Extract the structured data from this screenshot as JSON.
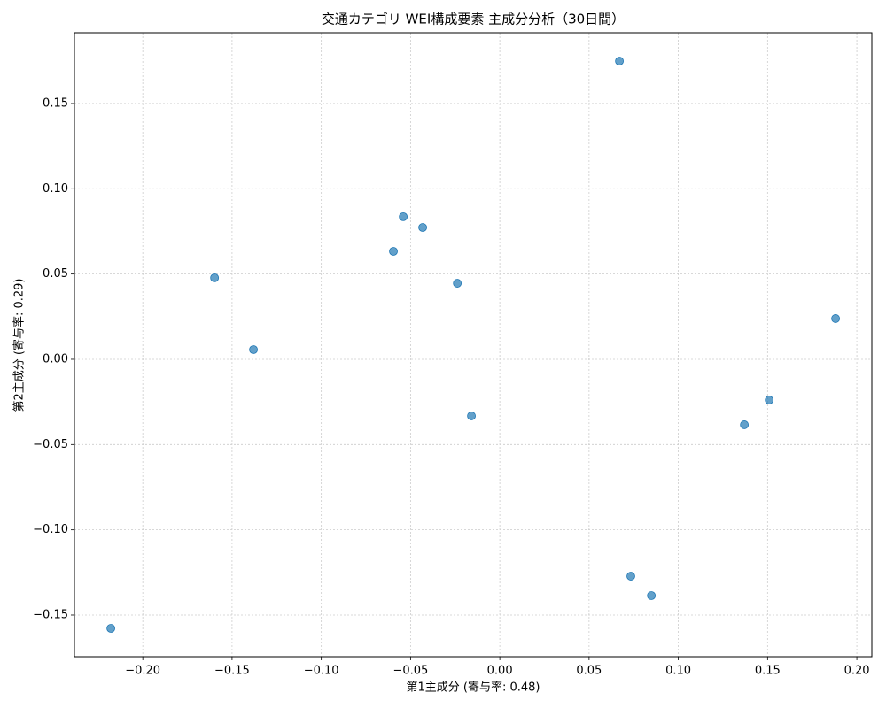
{
  "chart_data": {
    "type": "scatter",
    "title": "交通カテゴリ WEI構成要素 主成分分析（30日間）",
    "x_label": "第1主成分 (寄与率: 0.48)",
    "y_label": "第2主成分 (寄与率: 0.29)",
    "color": "#1f77b4",
    "grid": true,
    "xlim": [
      -0.2383,
      0.2084
    ],
    "ylim": [
      -0.1744,
      0.1915
    ],
    "xticks": [
      {
        "value": -0.2,
        "label": "−0.20"
      },
      {
        "value": -0.15,
        "label": "−0.15"
      },
      {
        "value": -0.1,
        "label": "−0.10"
      },
      {
        "value": -0.05,
        "label": "−0.05"
      },
      {
        "value": 0,
        "label": "0.00"
      },
      {
        "value": 0.05,
        "label": "0.05"
      },
      {
        "value": 0.1,
        "label": "0.10"
      },
      {
        "value": 0.15,
        "label": "0.15"
      },
      {
        "value": 0.2,
        "label": "0.20"
      }
    ],
    "yticks": [
      {
        "value": -0.15,
        "label": "−0.15"
      },
      {
        "value": -0.1,
        "label": "−0.10"
      },
      {
        "value": -0.05,
        "label": "−0.05"
      },
      {
        "value": 0,
        "label": "0.00"
      },
      {
        "value": 0.05,
        "label": "0.05"
      },
      {
        "value": 0.1,
        "label": "0.10"
      },
      {
        "value": 0.15,
        "label": "0.15"
      }
    ],
    "x": [
      0.067,
      -0.0541,
      -0.0432,
      -0.0596,
      -0.1598,
      -0.0238,
      0.1881,
      -0.138,
      0.1509,
      -0.0159,
      0.137,
      0.0734,
      0.0849,
      -0.2179
    ],
    "values": [
      0.1749,
      0.0836,
      0.0773,
      0.0633,
      0.0478,
      0.0446,
      0.0239,
      0.0057,
      -0.0239,
      -0.0332,
      -0.0384,
      -0.1272,
      -0.1386,
      -0.1578
    ]
  }
}
